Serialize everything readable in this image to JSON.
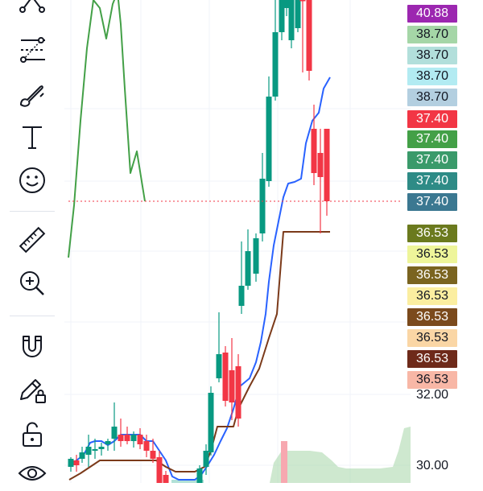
{
  "toolbar": {
    "tools": [
      {
        "name": "pattern-tool-icon"
      },
      {
        "name": "fib-retracement-icon"
      },
      {
        "name": "brush-icon"
      },
      {
        "name": "text-tool-icon"
      },
      {
        "name": "emoji-icon"
      },
      {
        "name": "ruler-icon"
      },
      {
        "name": "zoom-in-icon"
      },
      {
        "name": "magnet-icon"
      },
      {
        "name": "pencil-lock-icon"
      },
      {
        "name": "lock-icon"
      },
      {
        "name": "eye-icon"
      }
    ]
  },
  "price_tags": [
    {
      "value": "40.88",
      "bg": "#9c27b0",
      "fg": "#ffffff"
    },
    {
      "value": "38.70",
      "bg": "#a5d6a7",
      "fg": "#131722"
    },
    {
      "value": "38.70",
      "bg": "#b2dfdb",
      "fg": "#131722"
    },
    {
      "value": "38.70",
      "bg": "#b2ebf2",
      "fg": "#131722"
    },
    {
      "value": "38.70",
      "bg": "#b3cfe0",
      "fg": "#131722"
    },
    {
      "value": "37.40",
      "bg": "#f23645",
      "fg": "#ffffff"
    },
    {
      "value": "37.40",
      "bg": "#43a047",
      "fg": "#ffffff"
    },
    {
      "value": "37.40",
      "bg": "#3a9a6a",
      "fg": "#ffffff"
    },
    {
      "value": "37.40",
      "bg": "#2e8b86",
      "fg": "#ffffff"
    },
    {
      "value": "37.40",
      "bg": "#3b7891",
      "fg": "#ffffff"
    },
    {
      "value": "36.53",
      "bg": "#6b7a1e",
      "fg": "#ffffff"
    },
    {
      "value": "36.53",
      "bg": "#eef59a",
      "fg": "#131722"
    },
    {
      "value": "36.53",
      "bg": "#7a6420",
      "fg": "#ffffff"
    },
    {
      "value": "36.53",
      "bg": "#fbeea0",
      "fg": "#131722"
    },
    {
      "value": "36.53",
      "bg": "#7b4a1c",
      "fg": "#ffffff"
    },
    {
      "value": "36.53",
      "bg": "#fad6a5",
      "fg": "#131722"
    },
    {
      "value": "36.53",
      "bg": "#6e2a1a",
      "fg": "#ffffff"
    },
    {
      "value": "36.53",
      "bg": "#f8b7a6",
      "fg": "#131722"
    }
  ],
  "axis_labels": [
    "32.00",
    "30.00"
  ],
  "colors": {
    "up": "#089981",
    "down": "#f23645",
    "conversion_line": "#2962ff",
    "base_line": "#7b3a1a",
    "lagging_span": "#43a047",
    "cloud": "#a5d6a7",
    "last_price_line": "#f23645"
  }
}
